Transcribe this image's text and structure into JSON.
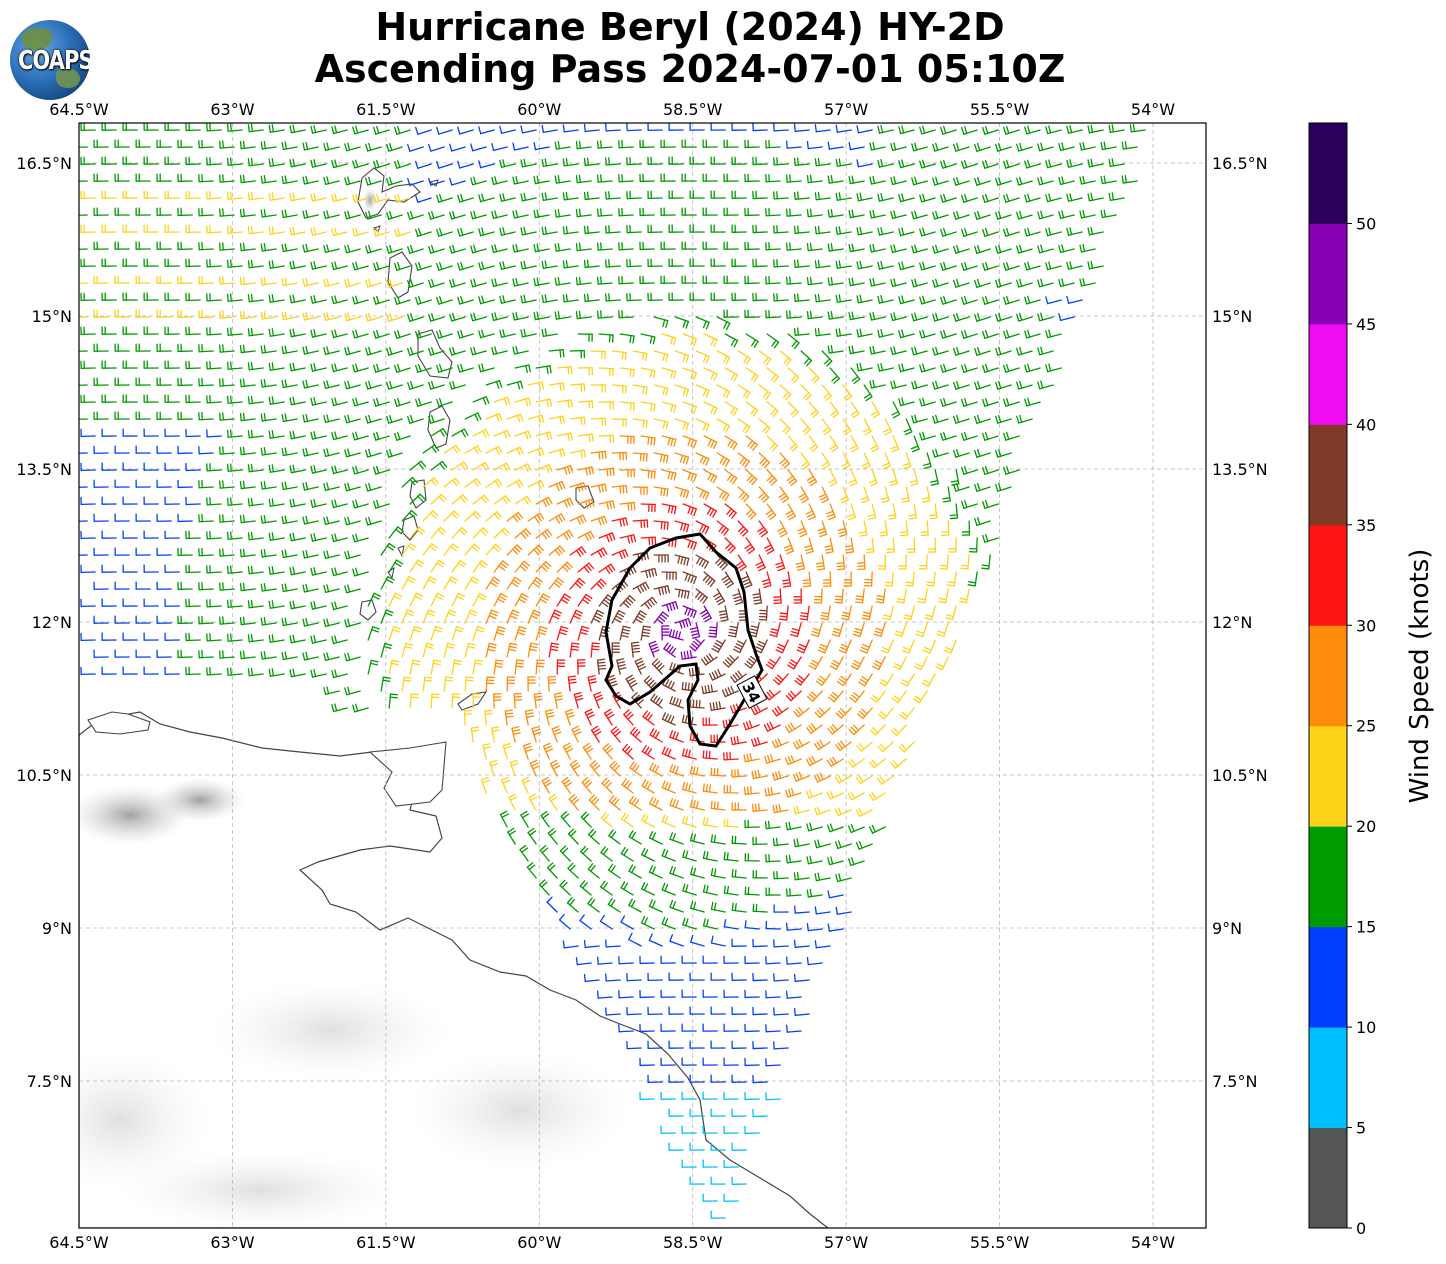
{
  "title_line1": "Hurricane Beryl (2024) HY-2D",
  "title_line2": "Ascending Pass 2024-07-01 05:10Z",
  "logo_text": "COAPS",
  "map": {
    "lon_labels": [
      "64.5°W",
      "63°W",
      "61.5°W",
      "60°W",
      "58.5°W",
      "57°W",
      "55.5°W",
      "54°W"
    ],
    "lat_labels": [
      "16.5°N",
      "15°N",
      "13.5°N",
      "12°N",
      "10.5°N",
      "9°N",
      "7.5°N"
    ],
    "contour_label": "34",
    "storm_center": {
      "lon": -58.6,
      "lat": 11.9
    }
  },
  "colorbar": {
    "label": "Wind Speed (knots)",
    "ticks": [
      "0",
      "5",
      "10",
      "15",
      "20",
      "25",
      "30",
      "35",
      "40",
      "45",
      "50"
    ],
    "colors": [
      "#555555",
      "#00bfff",
      "#0040ff",
      "#009b00",
      "#ffd21a",
      "#ff8c0a",
      "#ff1414",
      "#7f3b27",
      "#f00cf0",
      "#8700b5",
      "#2a005c"
    ]
  }
}
